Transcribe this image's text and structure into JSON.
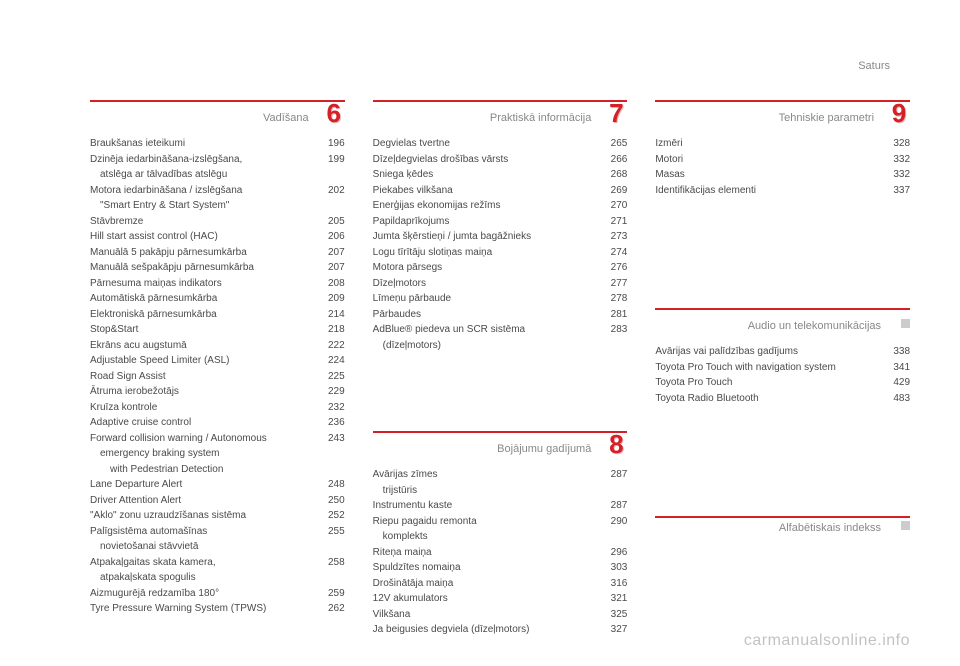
{
  "header": {
    "right_label": "Saturs"
  },
  "watermark": "carmanualsonline.info",
  "col1": {
    "section": {
      "title": "Vadīšana",
      "number": "6"
    },
    "items": [
      {
        "label": "Braukšanas ieteikumi",
        "page": "196"
      },
      {
        "label": "Dzinēja iedarbināšana-izslēgšana,",
        "sub": "atslēga ar tālvadības atslēgu",
        "page": "199"
      },
      {
        "label": "Motora iedarbināšana / izslēgšana",
        "sub": "\"Smart Entry & Start System\"",
        "page": "202"
      },
      {
        "label": "Stāvbremze",
        "page": "205"
      },
      {
        "label": "Hill start assist control (HAC)",
        "page": "206"
      },
      {
        "label": "Manuālā 5 pakāpju pārnesumkārba",
        "page": "207"
      },
      {
        "label": "Manuālā sešpakāpju pārnesumkārba",
        "page": "207"
      },
      {
        "label": "Pārnesuma maiņas indikators",
        "page": "208"
      },
      {
        "label": "Automātiskā pārnesumkārba",
        "page": "209"
      },
      {
        "label": "Elektroniskā pārnesumkārba",
        "page": "214"
      },
      {
        "label": "Stop&Start",
        "page": "218"
      },
      {
        "label": "Ekrāns acu augstumā",
        "page": "222"
      },
      {
        "label": "Adjustable Speed Limiter (ASL)",
        "page": "224"
      },
      {
        "label": "Road Sign Assist",
        "page": "225"
      },
      {
        "label": "Ātruma ierobežotājs",
        "page": "229"
      },
      {
        "label": "Kruīza kontrole",
        "page": "232"
      },
      {
        "label": "Adaptive cruise control",
        "page": "236"
      },
      {
        "label": "Forward collision warning / Autonomous",
        "sub": "emergency braking system",
        "sub2": "with Pedestrian Detection",
        "page": "243"
      },
      {
        "label": "Lane Departure Alert",
        "page": "248"
      },
      {
        "label": "Driver Attention Alert",
        "page": "250"
      },
      {
        "label": "\"Aklo\" zonu uzraudzīšanas sistēma",
        "page": "252"
      },
      {
        "label": "Palīgsistēma automašīnas",
        "sub": "novietošanai stāvvietā",
        "page": "255"
      },
      {
        "label": "Atpakaļgaitas skata kamera,",
        "sub": "atpakaļskata spogulis",
        "page": "258"
      },
      {
        "label": "Aizmugurējā redzamība 180°",
        "page": "259"
      },
      {
        "label": "Tyre Pressure Warning System (TPWS)",
        "page": "262"
      }
    ]
  },
  "col2": {
    "sectionA": {
      "title": "Praktiskā informācija",
      "number": "7"
    },
    "itemsA": [
      {
        "label": "Degvielas tvertne",
        "page": "265"
      },
      {
        "label": "Dīzeļdegvielas drošības vārsts",
        "page": "266"
      },
      {
        "label": "Sniega ķēdes",
        "page": "268"
      },
      {
        "label": "Piekabes vilkšana",
        "page": "269"
      },
      {
        "label": "Enerģijas ekonomijas režīms",
        "page": "270"
      },
      {
        "label": "Papildaprīkojums",
        "page": "271"
      },
      {
        "label": "Jumta šķērstieņi / jumta bagāžnieks",
        "page": "273"
      },
      {
        "label": "Logu tīrītāju slotiņas maiņa",
        "page": "274"
      },
      {
        "label": "Motora pārsegs",
        "page": "276"
      },
      {
        "label": "Dīzeļmotors",
        "page": "277"
      },
      {
        "label": "Līmeņu pārbaude",
        "page": "278"
      },
      {
        "label": "Pārbaudes",
        "page": "281"
      },
      {
        "label": "AdBlue® piedeva un SCR sistēma",
        "sub": "(dīzeļmotors)",
        "page": "283"
      }
    ],
    "sectionB": {
      "title": "Bojājumu gadījumā",
      "number": "8"
    },
    "itemsB": [
      {
        "label": "Avārijas zīmes",
        "sub": "trijstūris",
        "page": "287"
      },
      {
        "label": "Instrumentu kaste",
        "page": "287"
      },
      {
        "label": "Riepu pagaidu remonta",
        "sub": "komplekts",
        "page": "290"
      },
      {
        "label": "Riteņa maiņa",
        "page": "296"
      },
      {
        "label": "Spuldzītes nomaiņa",
        "page": "303"
      },
      {
        "label": "Drošinātāja maiņa",
        "page": "316"
      },
      {
        "label": "12V akumulators",
        "page": "321"
      },
      {
        "label": "Vilkšana",
        "page": "325"
      },
      {
        "label": "Ja beigusies degviela (dīzeļmotors)",
        "page": "327"
      }
    ]
  },
  "col3": {
    "sectionA": {
      "title": "Tehniskie parametri",
      "number": "9"
    },
    "itemsA": [
      {
        "label": "Izmēri",
        "page": "328"
      },
      {
        "label": "Motori",
        "page": "332"
      },
      {
        "label": "Masas",
        "page": "332"
      },
      {
        "label": "Identifikācijas elementi",
        "page": "337"
      }
    ],
    "sectionB": {
      "title": "Audio un telekomunikācijas"
    },
    "itemsB": [
      {
        "label": "Avārijas vai palīdzības gadījums",
        "page": "338"
      },
      {
        "label": "Toyota Pro Touch with navigation system",
        "page": "341"
      },
      {
        "label": "Toyota Pro Touch",
        "page": "429"
      },
      {
        "label": "Toyota Radio Bluetooth",
        "page": "483"
      }
    ],
    "sectionC": {
      "title": "Alfabētiskais indekss"
    }
  }
}
